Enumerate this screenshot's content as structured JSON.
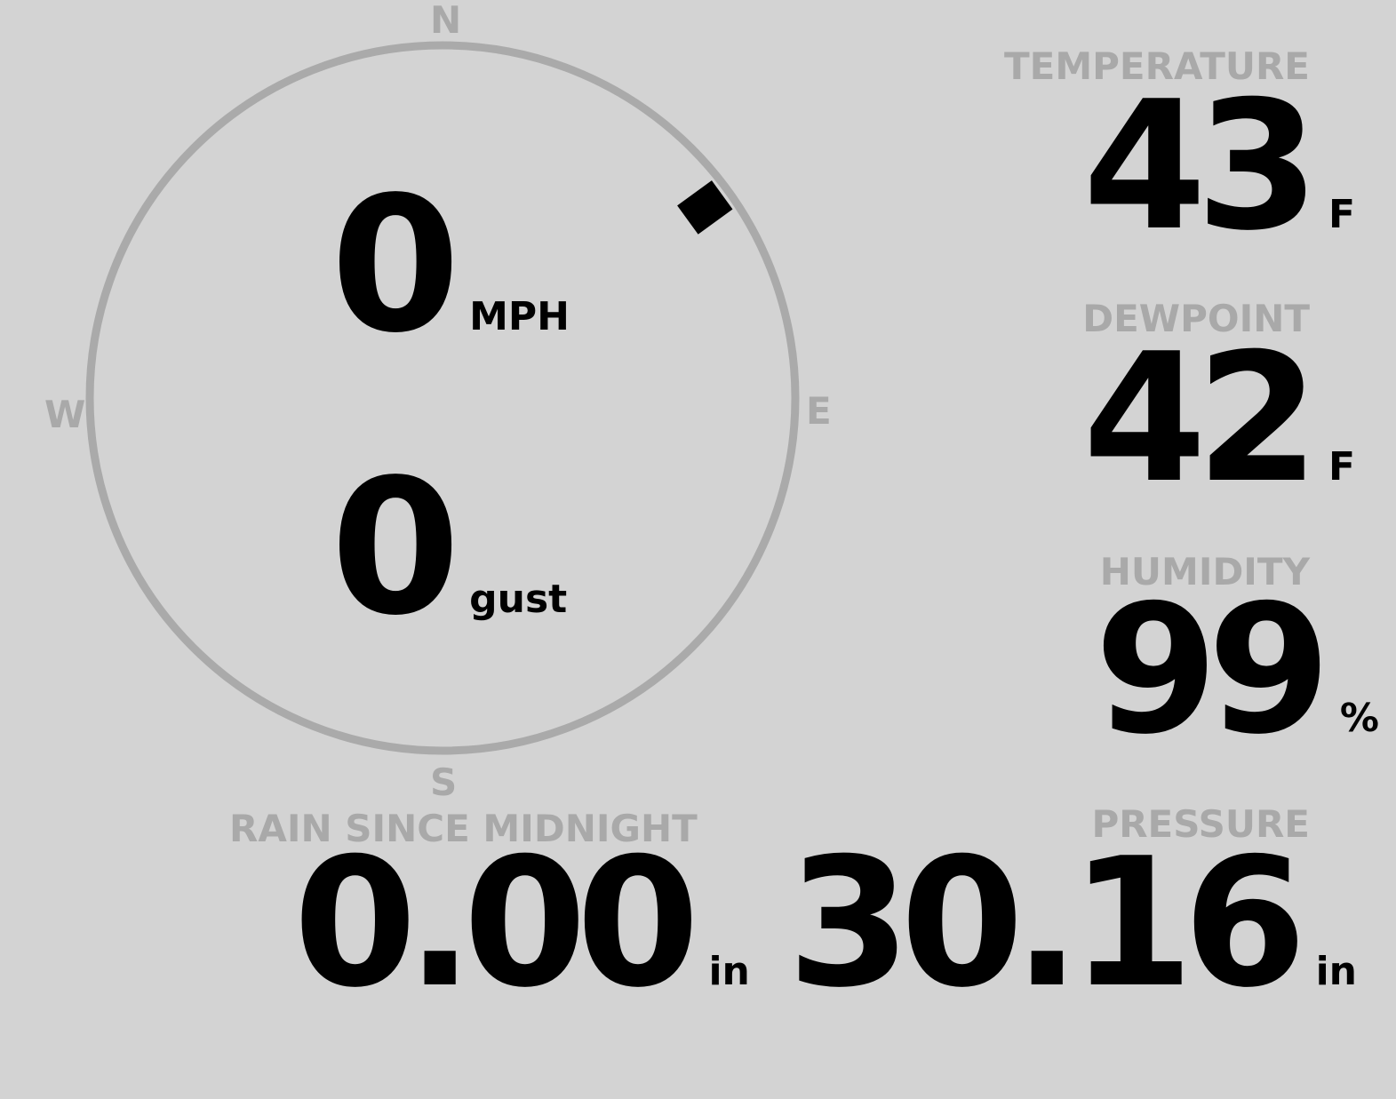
{
  "wind": {
    "compass": {
      "n": "N",
      "e": "E",
      "s": "S",
      "w": "W"
    },
    "speed": "0",
    "speed_unit": "MPH",
    "gust": "0",
    "gust_unit": "gust",
    "direction_deg": 54
  },
  "temperature": {
    "label": "TEMPERATURE",
    "value": "43",
    "unit": "F"
  },
  "dewpoint": {
    "label": "DEWPOINT",
    "value": "42",
    "unit": "F"
  },
  "humidity": {
    "label": "HUMIDITY",
    "value": "99",
    "unit": "%"
  },
  "rain": {
    "label": "RAIN SINCE MIDNIGHT",
    "value": "0.00",
    "unit": "in"
  },
  "pressure": {
    "label": "PRESSURE",
    "value": "30.16",
    "unit": "in"
  },
  "colors": {
    "background": "#d3d3d3",
    "label": "#a9a9a9",
    "value": "#000000",
    "dial": "#aaaaaa"
  }
}
